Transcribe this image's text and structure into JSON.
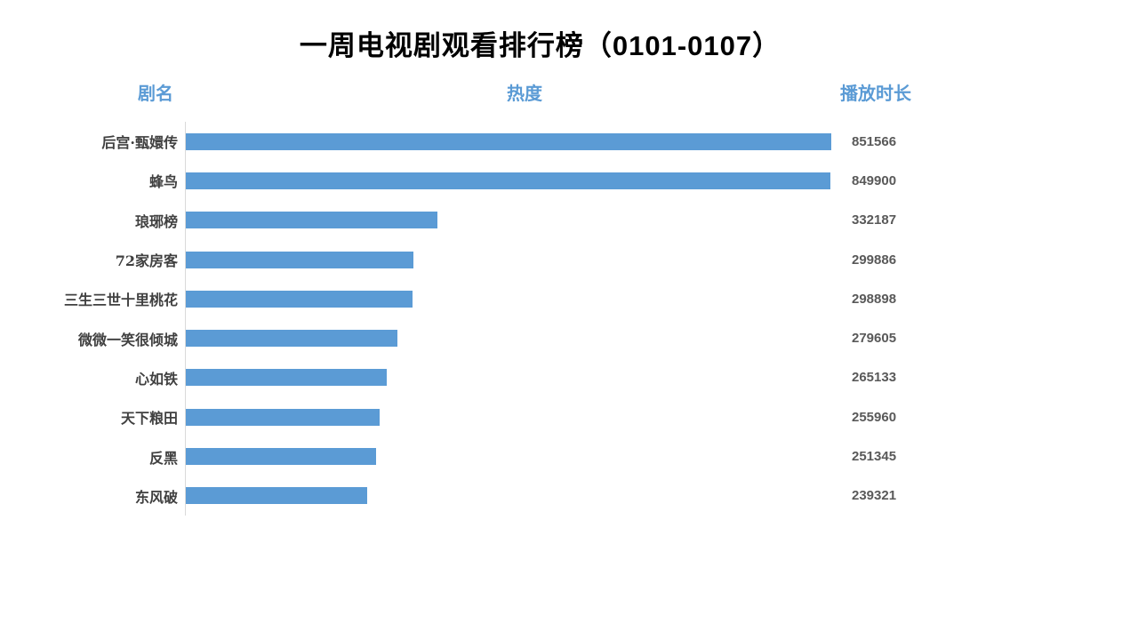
{
  "title": "一周电视剧观看排行榜（0101-0107）",
  "headers": {
    "name": "剧名",
    "heat": "热度",
    "duration": "播放时长"
  },
  "colors": {
    "bar": "#5B9BD5",
    "header_text": "#5B9BD5",
    "value_text": "#595959",
    "label_text": "#404040",
    "axis_line": "#D9D9D9",
    "title_text": "#000000",
    "background": "#FFFFFF"
  },
  "chart_data": {
    "type": "bar",
    "orientation": "horizontal",
    "title": "一周电视剧观看排行榜（0101-0107）",
    "category_column_label": "剧名",
    "bar_column_label": "热度",
    "value_column_label": "播放时长",
    "categories": [
      "后宫·甄嬛传",
      "蜂鸟",
      "琅琊榜",
      "72家房客",
      "三生三世十里桃花",
      "微微一笑很倾城",
      "心如铁",
      "天下粮田",
      "反黑",
      "东风破"
    ],
    "values": [
      851566,
      849900,
      332187,
      299886,
      298898,
      279605,
      265133,
      255960,
      251345,
      239321
    ],
    "grid": "off",
    "legend": "none",
    "sort_order": "descending"
  }
}
